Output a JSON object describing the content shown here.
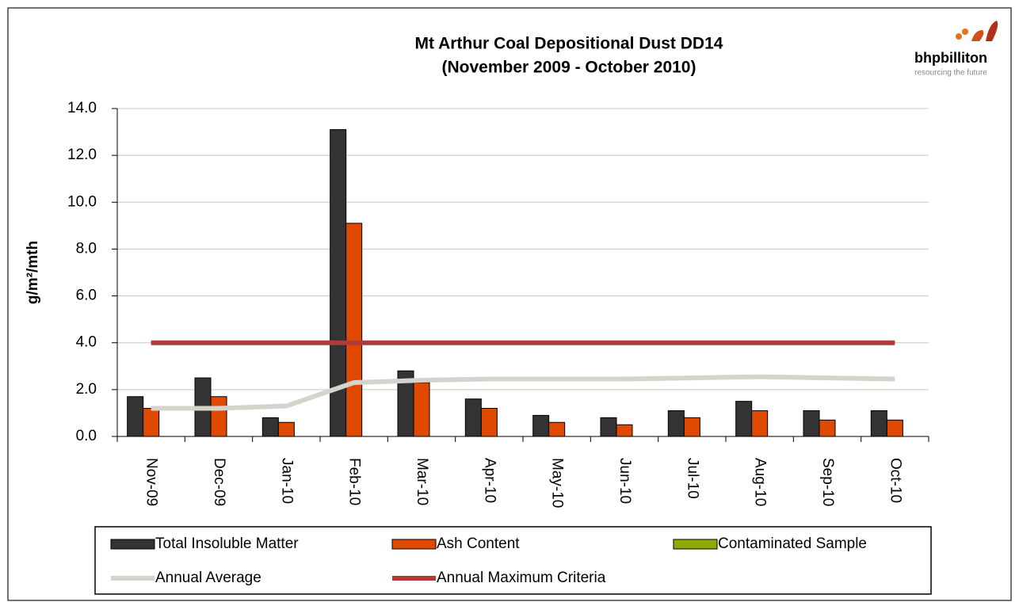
{
  "chart_data": {
    "type": "bar",
    "title": "Mt Arthur Coal Depositional Dust DD14",
    "subtitle": "(November 2009 - October 2010)",
    "y_label": "g/m²/mth",
    "logo": {
      "name": "bhpbilliton",
      "tagline": "resourcing the future"
    },
    "categories": [
      "Nov-09",
      "Dec-09",
      "Jan-10",
      "Feb-10",
      "Mar-10",
      "Apr-10",
      "May-10",
      "Jun-10",
      "Jul-10",
      "Aug-10",
      "Sep-10",
      "Oct-10"
    ],
    "series": [
      {
        "name": "Total Insoluble Matter",
        "color": "#333333",
        "kind": "bar",
        "values": [
          1.7,
          2.5,
          0.8,
          13.1,
          2.8,
          1.6,
          0.9,
          0.8,
          1.1,
          1.5,
          1.1,
          1.1
        ]
      },
      {
        "name": "Ash Content",
        "color": "#e04a00",
        "kind": "bar",
        "values": [
          1.2,
          1.7,
          0.6,
          9.1,
          2.3,
          1.2,
          0.6,
          0.5,
          0.8,
          1.1,
          0.7,
          0.7
        ]
      },
      {
        "name": "Contaminated Sample",
        "color": "#8faa00",
        "kind": "bar",
        "values": [
          0,
          0,
          0,
          0,
          0,
          0,
          0,
          0,
          0,
          0,
          0,
          0
        ]
      },
      {
        "name": "Annual Average",
        "color": "#d4d4cc",
        "kind": "line",
        "values": [
          1.2,
          1.2,
          1.3,
          2.3,
          2.4,
          2.45,
          2.45,
          2.45,
          2.5,
          2.55,
          2.5,
          2.45
        ]
      },
      {
        "name": "Annual Maximum Criteria",
        "color": "#b03a3a",
        "kind": "line",
        "values": [
          4,
          4,
          4,
          4,
          4,
          4,
          4,
          4,
          4,
          4,
          4,
          4
        ]
      }
    ],
    "ylim": [
      0,
      14
    ],
    "yticks": [
      {
        "value": 0,
        "label": "0.0"
      },
      {
        "value": 2,
        "label": "2.0"
      },
      {
        "value": 4,
        "label": "4.0"
      },
      {
        "value": 6,
        "label": "6.0"
      },
      {
        "value": 8,
        "label": "8.0"
      },
      {
        "value": 10,
        "label": "10.0"
      },
      {
        "value": 12,
        "label": "12.0"
      },
      {
        "value": 14,
        "label": "14.0"
      }
    ],
    "grid": true
  }
}
